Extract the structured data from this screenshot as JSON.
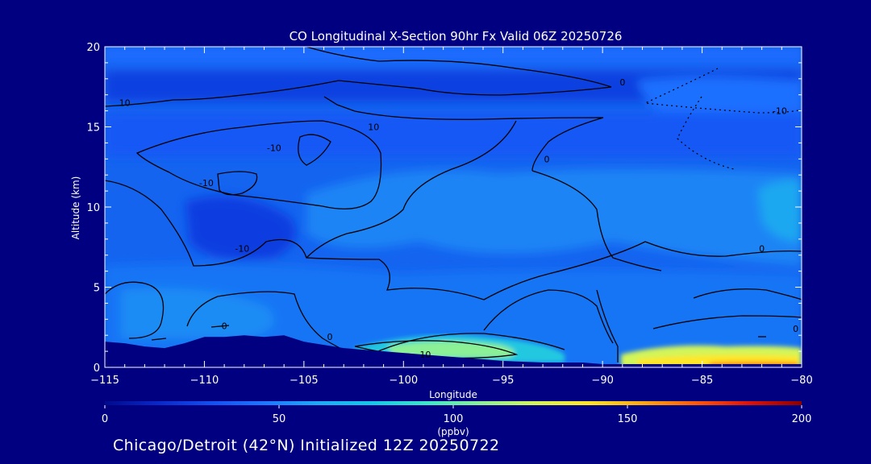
{
  "chart_data": {
    "type": "heatmap",
    "title": "CO Longitudinal X-Section 90hr  Fx Valid 06Z 20250726",
    "xlabel": "Longitude",
    "ylabel": "Altitude (km)",
    "xlim": [
      -115,
      -80
    ],
    "ylim": [
      0,
      20
    ],
    "xticks": [
      -115,
      -110,
      -105,
      -100,
      -95,
      -90,
      -85,
      -80
    ],
    "xtick_labels": [
      "−115",
      "−110",
      "−105",
      "−100",
      "−95",
      "−90",
      "−85",
      "−80"
    ],
    "yticks": [
      0,
      5,
      10,
      15,
      20
    ],
    "ytick_labels": [
      "0",
      "5",
      "10",
      "15",
      "20"
    ],
    "colorbar": {
      "min": 0,
      "max": 200,
      "ticks": [
        0,
        50,
        100,
        150,
        200
      ],
      "tick_labels": [
        "0",
        "50",
        "100",
        "150",
        "200"
      ],
      "units": "(ppbv)",
      "colors": [
        "#000a8c",
        "#0a28c8",
        "#1450f0",
        "#1e78ff",
        "#1eaaf5",
        "#14c8e6",
        "#3ce6c8",
        "#8cf096",
        "#d2f55a",
        "#ffe628",
        "#ffaa14",
        "#ff5a0a",
        "#dc140a",
        "#8c0000"
      ]
    },
    "terrain": {
      "lon": [
        -115,
        -114,
        -113,
        -112,
        -111,
        -110,
        -109,
        -108,
        -107,
        -106,
        -105,
        -104,
        -103,
        -102,
        -101,
        -100,
        -99,
        -98,
        -97,
        -96,
        -95,
        -94,
        -93,
        -92,
        -91,
        -90,
        -89,
        -88,
        -87,
        -86,
        -85,
        -84,
        -83,
        -82,
        -81,
        -80
      ],
      "alt_km": [
        1.6,
        1.5,
        1.3,
        1.2,
        1.5,
        1.9,
        1.9,
        2.0,
        1.9,
        2.0,
        1.6,
        1.4,
        1.2,
        1.1,
        1.0,
        0.9,
        0.8,
        0.7,
        0.6,
        0.5,
        0.4,
        0.35,
        0.3,
        0.3,
        0.3,
        0.2,
        0.2,
        0.2,
        0.2,
        0.2,
        0.2,
        0.2,
        0.2,
        0.2,
        0.2,
        0.2
      ]
    },
    "annotations": [
      {
        "text": "10",
        "x": -114.0,
        "y": 16.5
      },
      {
        "text": "-10",
        "x": -106.5,
        "y": 13.7
      },
      {
        "text": "-10",
        "x": -109.9,
        "y": 11.5
      },
      {
        "text": "10",
        "x": -101.5,
        "y": 15.0
      },
      {
        "text": "0",
        "x": -89.0,
        "y": 17.8
      },
      {
        "text": "0",
        "x": -92.8,
        "y": 13.0
      },
      {
        "text": "-10",
        "x": -81.1,
        "y": 16.0
      },
      {
        "text": "0",
        "x": -82.0,
        "y": 7.4
      },
      {
        "text": "-10",
        "x": -108.1,
        "y": 7.4
      },
      {
        "text": "0",
        "x": -109.0,
        "y": 2.6
      },
      {
        "text": "0",
        "x": -103.7,
        "y": 1.9
      },
      {
        "text": "10",
        "x": -98.9,
        "y": 0.8
      },
      {
        "text": "0",
        "x": -80.3,
        "y": 2.4
      }
    ]
  },
  "footer": "Chicago/Detroit (42°N) Initialized 12Z 20250722"
}
